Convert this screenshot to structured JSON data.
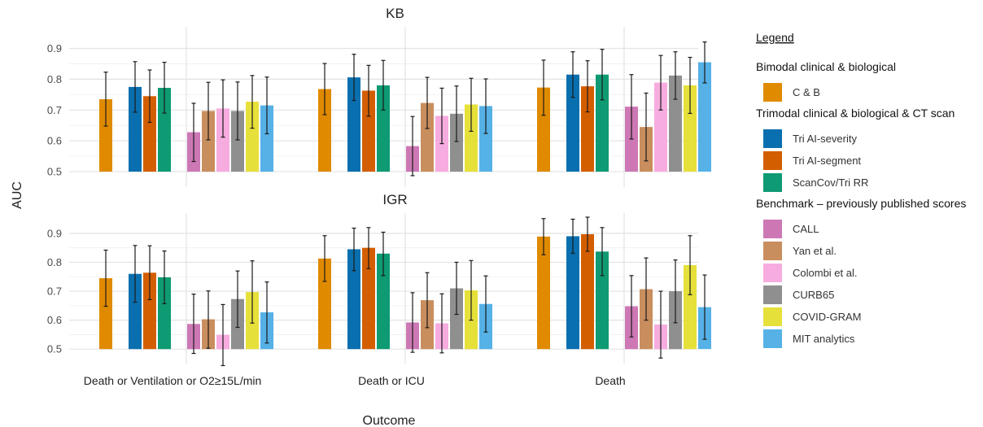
{
  "chart_data": {
    "type": "bar",
    "ylabel": "AUC",
    "xlabel": "Outcome",
    "ylim": [
      0.45,
      0.97
    ],
    "yticks": [
      0.5,
      0.6,
      0.7,
      0.8,
      0.9
    ],
    "tick_labels": [
      "0.5",
      "0.6",
      "0.7",
      "0.8",
      "0.9"
    ],
    "categories": [
      "Death or Ventilation or O2≥15L/min",
      "Death or ICU",
      "Death"
    ],
    "legend": {
      "title": "Legend",
      "groups": [
        {
          "label": "Bimodal clinical & biological",
          "items": [
            "C & B"
          ]
        },
        {
          "label": "Trimodal clinical & biological & CT scan",
          "items": [
            "Tri AI-severity",
            "Tri AI-segment",
            "ScanCov/Tri RR"
          ]
        },
        {
          "label": "Benchmark – previously published scores",
          "items": [
            "CALL",
            "Yan et al.",
            "Colombi et al.",
            "CURB65",
            "COVID-GRAM",
            "MIT analytics"
          ]
        }
      ]
    },
    "series": [
      {
        "name": "C & B",
        "color": "#E08A00"
      },
      {
        "name": "Tri AI-severity",
        "color": "#0A6FAF"
      },
      {
        "name": "Tri AI-segment",
        "color": "#D35E00"
      },
      {
        "name": "ScanCov/Tri RR",
        "color": "#0E9A72"
      },
      {
        "name": "CALL",
        "color": "#CD78B5"
      },
      {
        "name": "Yan et al.",
        "color": "#C98E5E"
      },
      {
        "name": "Colombi et al.",
        "color": "#F7ACE0"
      },
      {
        "name": "CURB65",
        "color": "#8F8F8F"
      },
      {
        "name": "COVID-GRAM",
        "color": "#E6E03A"
      },
      {
        "name": "MIT analytics",
        "color": "#55B1E6"
      }
    ],
    "panels": [
      {
        "title": "KB",
        "values": [
          [
            0.735,
            0.775,
            0.745,
            0.772,
            0.628,
            0.697,
            0.705,
            0.697,
            0.727,
            0.715
          ],
          [
            0.768,
            0.806,
            0.763,
            0.78,
            0.583,
            0.723,
            0.681,
            0.688,
            0.718,
            0.713
          ],
          [
            0.773,
            0.815,
            0.777,
            0.815,
            0.711,
            0.645,
            0.789,
            0.812,
            0.78,
            0.855
          ]
        ],
        "errors": [
          [
            [
              0.648,
              0.823
            ],
            [
              0.693,
              0.857
            ],
            [
              0.66,
              0.83
            ],
            [
              0.69,
              0.855
            ],
            [
              0.533,
              0.722
            ],
            [
              0.603,
              0.79
            ],
            [
              0.612,
              0.798
            ],
            [
              0.603,
              0.791
            ],
            [
              0.641,
              0.812
            ],
            [
              0.623,
              0.807
            ]
          ],
          [
            [
              0.685,
              0.851
            ],
            [
              0.731,
              0.881
            ],
            [
              0.68,
              0.845
            ],
            [
              0.7,
              0.861
            ],
            [
              0.487,
              0.679
            ],
            [
              0.64,
              0.806
            ],
            [
              0.591,
              0.771
            ],
            [
              0.598,
              0.778
            ],
            [
              0.631,
              0.803
            ],
            [
              0.624,
              0.801
            ]
          ],
          [
            [
              0.683,
              0.862
            ],
            [
              0.741,
              0.889
            ],
            [
              0.694,
              0.86
            ],
            [
              0.733,
              0.897
            ],
            [
              0.606,
              0.815
            ],
            [
              0.535,
              0.755
            ],
            [
              0.7,
              0.877
            ],
            [
              0.735,
              0.889
            ],
            [
              0.689,
              0.871
            ],
            [
              0.788,
              0.921
            ]
          ]
        ]
      },
      {
        "title": "IGR",
        "values": [
          [
            0.745,
            0.76,
            0.764,
            0.748,
            0.587,
            0.603,
            0.549,
            0.673,
            0.697,
            0.627
          ],
          [
            0.813,
            0.845,
            0.85,
            0.83,
            0.592,
            0.669,
            0.589,
            0.71,
            0.703,
            0.656
          ],
          [
            0.889,
            0.89,
            0.897,
            0.837,
            0.648,
            0.707,
            0.585,
            0.7,
            0.79,
            0.645
          ]
        ],
        "errors": [
          [
            [
              0.648,
              0.842
            ],
            [
              0.662,
              0.858
            ],
            [
              0.671,
              0.857
            ],
            [
              0.657,
              0.839
            ],
            [
              0.485,
              0.69
            ],
            [
              0.503,
              0.701
            ],
            [
              0.443,
              0.654
            ],
            [
              0.575,
              0.77
            ],
            [
              0.59,
              0.805
            ],
            [
              0.521,
              0.732
            ]
          ],
          [
            [
              0.734,
              0.892
            ],
            [
              0.771,
              0.918
            ],
            [
              0.778,
              0.92
            ],
            [
              0.754,
              0.904
            ],
            [
              0.489,
              0.695
            ],
            [
              0.574,
              0.764
            ],
            [
              0.487,
              0.691
            ],
            [
              0.62,
              0.8
            ],
            [
              0.6,
              0.806
            ],
            [
              0.559,
              0.753
            ]
          ],
          [
            [
              0.826,
              0.951
            ],
            [
              0.831,
              0.949
            ],
            [
              0.838,
              0.956
            ],
            [
              0.754,
              0.92
            ],
            [
              0.542,
              0.754
            ],
            [
              0.6,
              0.815
            ],
            [
              0.469,
              0.7
            ],
            [
              0.591,
              0.808
            ],
            [
              0.688,
              0.892
            ],
            [
              0.534,
              0.756
            ]
          ]
        ]
      }
    ]
  }
}
